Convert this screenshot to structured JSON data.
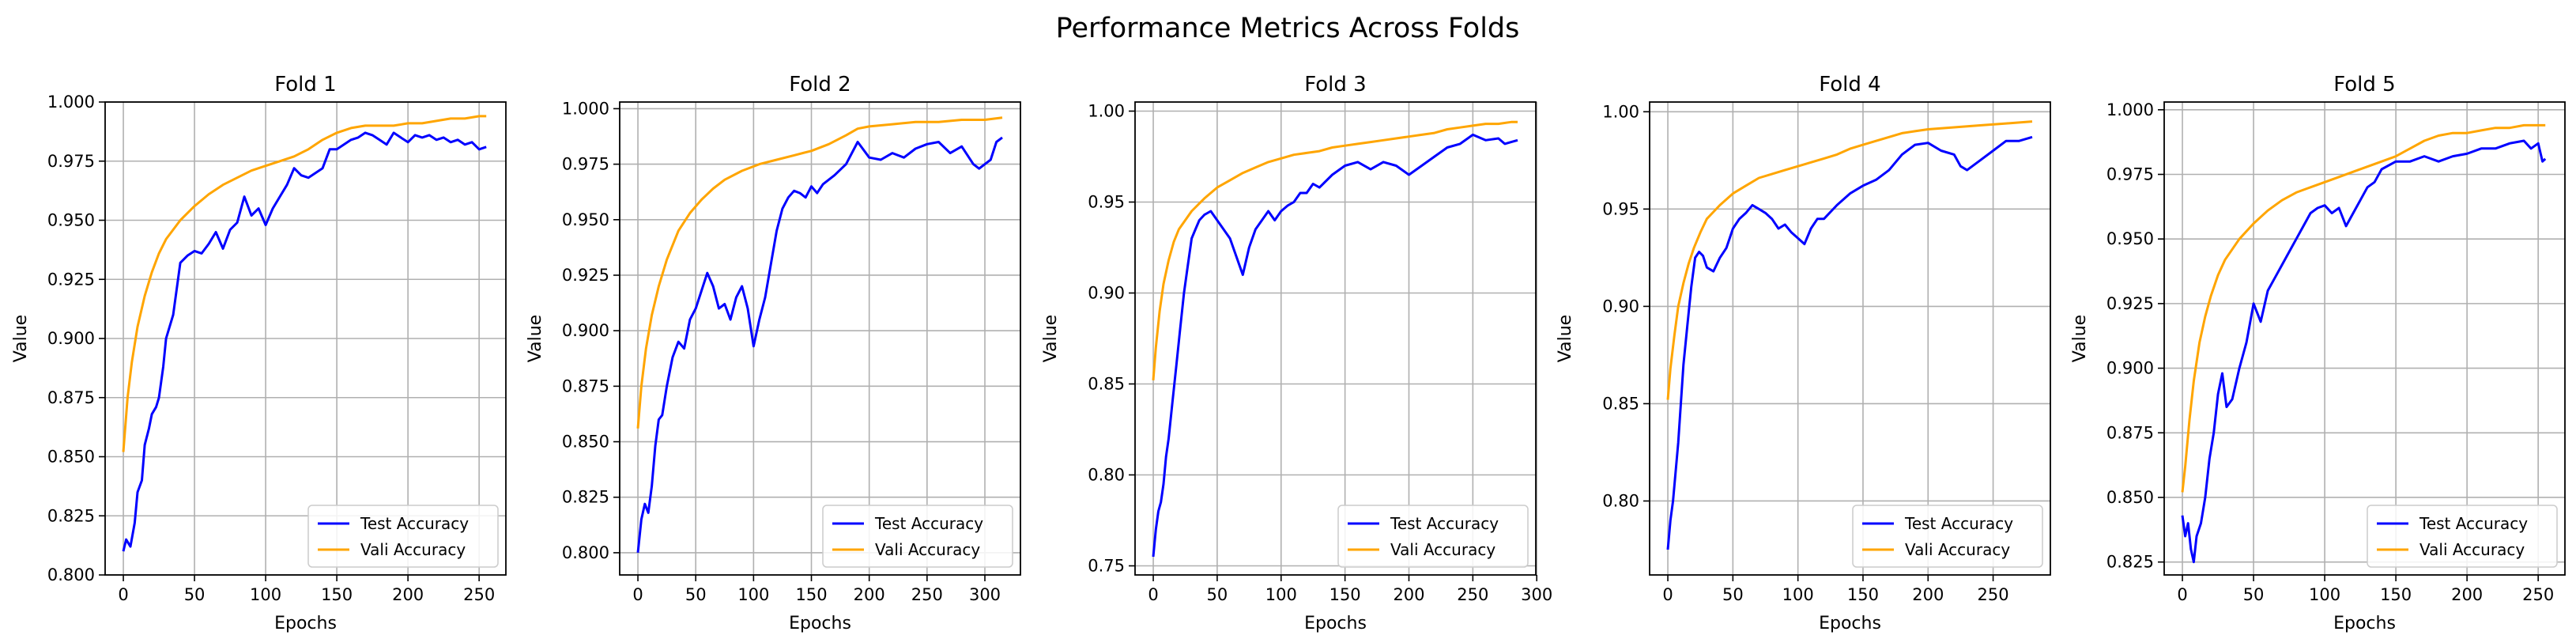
{
  "figure": {
    "title": "Performance Metrics Across Folds"
  },
  "colors": {
    "test": "#0000ff",
    "vali": "#ffa500",
    "grid": "#b0b0b0",
    "axes": "#000000"
  },
  "chart_data": [
    {
      "type": "line",
      "title": "Fold 1",
      "xlabel": "Epochs",
      "ylabel": "Value",
      "xlim": [
        -12.8,
        268.8
      ],
      "ylim": [
        0.8,
        1.0
      ],
      "xticks": [
        0,
        50,
        100,
        150,
        200,
        250
      ],
      "yticks": [
        0.8,
        0.825,
        0.85,
        0.875,
        0.9,
        0.925,
        0.95,
        0.975,
        1.0
      ],
      "ytick_labels": [
        "0.800",
        "0.825",
        "0.850",
        "0.875",
        "0.900",
        "0.925",
        "0.950",
        "0.975",
        "1.000"
      ],
      "grid": true,
      "legend": "lower-right",
      "series": [
        {
          "name": "Test Accuracy",
          "x": [
            0,
            2,
            5,
            8,
            10,
            13,
            15,
            18,
            20,
            23,
            25,
            28,
            30,
            35,
            40,
            45,
            50,
            55,
            60,
            65,
            70,
            75,
            80,
            85,
            90,
            95,
            100,
            105,
            110,
            115,
            120,
            125,
            130,
            135,
            140,
            145,
            150,
            155,
            160,
            165,
            170,
            175,
            180,
            185,
            190,
            195,
            200,
            205,
            210,
            215,
            220,
            225,
            230,
            235,
            240,
            245,
            250,
            255
          ],
          "y": [
            0.81,
            0.815,
            0.812,
            0.822,
            0.835,
            0.84,
            0.855,
            0.862,
            0.868,
            0.871,
            0.875,
            0.888,
            0.9,
            0.91,
            0.932,
            0.935,
            0.937,
            0.936,
            0.94,
            0.945,
            0.938,
            0.946,
            0.949,
            0.96,
            0.952,
            0.955,
            0.948,
            0.955,
            0.96,
            0.965,
            0.972,
            0.969,
            0.968,
            0.97,
            0.972,
            0.98,
            0.98,
            0.982,
            0.984,
            0.985,
            0.987,
            0.986,
            0.984,
            0.982,
            0.987,
            0.985,
            0.983,
            0.986,
            0.985,
            0.986,
            0.984,
            0.985,
            0.983,
            0.984,
            0.982,
            0.983,
            0.98,
            0.981
          ]
        },
        {
          "name": "Vali Accuracy",
          "x": [
            0,
            3,
            6,
            10,
            15,
            20,
            25,
            30,
            40,
            50,
            60,
            70,
            80,
            90,
            100,
            110,
            120,
            130,
            140,
            150,
            160,
            170,
            180,
            190,
            200,
            210,
            220,
            230,
            240,
            250,
            255
          ],
          "y": [
            0.852,
            0.875,
            0.89,
            0.905,
            0.918,
            0.928,
            0.936,
            0.942,
            0.95,
            0.956,
            0.961,
            0.965,
            0.968,
            0.971,
            0.973,
            0.975,
            0.977,
            0.98,
            0.984,
            0.987,
            0.989,
            0.99,
            0.99,
            0.99,
            0.991,
            0.991,
            0.992,
            0.993,
            0.993,
            0.994,
            0.994
          ]
        }
      ]
    },
    {
      "type": "line",
      "title": "Fold 2",
      "xlabel": "Epochs",
      "ylabel": "Value",
      "xlim": [
        -15.75,
        330.75
      ],
      "ylim": [
        0.79,
        1.003
      ],
      "xticks": [
        0,
        50,
        100,
        150,
        200,
        250,
        300
      ],
      "yticks": [
        0.8,
        0.825,
        0.85,
        0.875,
        0.9,
        0.925,
        0.95,
        0.975,
        1.0
      ],
      "ytick_labels": [
        "0.800",
        "0.825",
        "0.850",
        "0.875",
        "0.900",
        "0.925",
        "0.950",
        "0.975",
        "1.000"
      ],
      "grid": true,
      "legend": "lower-right",
      "series": [
        {
          "name": "Test Accuracy",
          "x": [
            0,
            3,
            6,
            9,
            12,
            15,
            18,
            21,
            25,
            30,
            35,
            40,
            45,
            50,
            55,
            60,
            65,
            70,
            75,
            80,
            85,
            90,
            95,
            100,
            105,
            110,
            115,
            120,
            125,
            130,
            135,
            140,
            145,
            150,
            155,
            160,
            170,
            180,
            190,
            200,
            210,
            220,
            230,
            240,
            250,
            260,
            270,
            280,
            290,
            295,
            300,
            305,
            310,
            315
          ],
          "y": [
            0.8,
            0.815,
            0.822,
            0.818,
            0.83,
            0.848,
            0.86,
            0.862,
            0.875,
            0.888,
            0.895,
            0.892,
            0.905,
            0.91,
            0.918,
            0.926,
            0.92,
            0.91,
            0.912,
            0.905,
            0.915,
            0.92,
            0.91,
            0.893,
            0.905,
            0.915,
            0.93,
            0.945,
            0.955,
            0.96,
            0.963,
            0.962,
            0.96,
            0.965,
            0.962,
            0.966,
            0.97,
            0.975,
            0.985,
            0.978,
            0.977,
            0.98,
            0.978,
            0.982,
            0.984,
            0.985,
            0.98,
            0.983,
            0.975,
            0.973,
            0.975,
            0.977,
            0.985,
            0.987
          ]
        },
        {
          "name": "Vali Accuracy",
          "x": [
            0,
            3,
            7,
            12,
            18,
            25,
            35,
            45,
            55,
            65,
            75,
            90,
            105,
            120,
            135,
            150,
            165,
            180,
            190,
            200,
            220,
            240,
            260,
            280,
            300,
            315
          ],
          "y": [
            0.856,
            0.875,
            0.892,
            0.907,
            0.92,
            0.932,
            0.945,
            0.953,
            0.959,
            0.964,
            0.968,
            0.972,
            0.975,
            0.977,
            0.979,
            0.981,
            0.984,
            0.988,
            0.991,
            0.992,
            0.993,
            0.994,
            0.994,
            0.995,
            0.995,
            0.996
          ]
        }
      ]
    },
    {
      "type": "line",
      "title": "Fold 3",
      "xlabel": "Epochs",
      "ylabel": "Value",
      "xlim": [
        -14.25,
        299.25
      ],
      "ylim": [
        0.745,
        1.005
      ],
      "xticks": [
        0,
        50,
        100,
        150,
        200,
        250,
        300
      ],
      "yticks": [
        0.75,
        0.8,
        0.85,
        0.9,
        0.95,
        1.0
      ],
      "ytick_labels": [
        "0.75",
        "0.80",
        "0.85",
        "0.90",
        "0.95",
        "1.00"
      ],
      "grid": true,
      "legend": "lower-right",
      "series": [
        {
          "name": "Test Accuracy",
          "x": [
            0,
            2,
            4,
            6,
            8,
            10,
            12,
            15,
            18,
            21,
            24,
            27,
            30,
            33,
            36,
            40,
            45,
            50,
            55,
            60,
            65,
            70,
            75,
            80,
            85,
            90,
            95,
            100,
            105,
            110,
            115,
            120,
            125,
            130,
            140,
            150,
            160,
            170,
            180,
            190,
            200,
            210,
            220,
            230,
            240,
            250,
            260,
            270,
            275,
            280,
            285
          ],
          "y": [
            0.755,
            0.77,
            0.78,
            0.785,
            0.795,
            0.81,
            0.82,
            0.84,
            0.86,
            0.88,
            0.9,
            0.915,
            0.93,
            0.935,
            0.94,
            0.943,
            0.945,
            0.94,
            0.935,
            0.93,
            0.92,
            0.91,
            0.925,
            0.935,
            0.94,
            0.945,
            0.94,
            0.945,
            0.948,
            0.95,
            0.955,
            0.955,
            0.96,
            0.958,
            0.965,
            0.97,
            0.972,
            0.968,
            0.972,
            0.97,
            0.965,
            0.97,
            0.975,
            0.98,
            0.982,
            0.987,
            0.984,
            0.985,
            0.982,
            0.983,
            0.984
          ]
        },
        {
          "name": "Vali Accuracy",
          "x": [
            0,
            2,
            5,
            8,
            12,
            16,
            20,
            25,
            30,
            40,
            50,
            60,
            70,
            80,
            90,
            100,
            110,
            120,
            130,
            140,
            150,
            160,
            170,
            180,
            190,
            200,
            210,
            220,
            230,
            240,
            250,
            260,
            270,
            280,
            285
          ],
          "y": [
            0.852,
            0.87,
            0.89,
            0.905,
            0.918,
            0.928,
            0.935,
            0.94,
            0.945,
            0.952,
            0.958,
            0.962,
            0.966,
            0.969,
            0.972,
            0.974,
            0.976,
            0.977,
            0.978,
            0.98,
            0.981,
            0.982,
            0.983,
            0.984,
            0.985,
            0.986,
            0.987,
            0.988,
            0.99,
            0.991,
            0.992,
            0.993,
            0.993,
            0.994,
            0.994
          ]
        }
      ]
    },
    {
      "type": "line",
      "title": "Fold 4",
      "xlabel": "Epochs",
      "ylabel": "Value",
      "xlim": [
        -14.0,
        294.0
      ],
      "ylim": [
        0.762,
        1.005
      ],
      "xticks": [
        0,
        50,
        100,
        150,
        200,
        250
      ],
      "yticks": [
        0.8,
        0.85,
        0.9,
        0.95,
        1.0
      ],
      "ytick_labels": [
        "0.80",
        "0.85",
        "0.90",
        "0.95",
        "1.00"
      ],
      "grid": true,
      "legend": "lower-right",
      "series": [
        {
          "name": "Test Accuracy",
          "x": [
            0,
            2,
            4,
            6,
            8,
            10,
            12,
            15,
            18,
            21,
            24,
            27,
            30,
            35,
            40,
            45,
            50,
            55,
            60,
            65,
            70,
            75,
            80,
            85,
            90,
            95,
            100,
            105,
            110,
            115,
            120,
            130,
            140,
            150,
            160,
            170,
            180,
            190,
            200,
            210,
            220,
            225,
            230,
            240,
            250,
            260,
            270,
            280
          ],
          "y": [
            0.775,
            0.79,
            0.8,
            0.815,
            0.83,
            0.85,
            0.87,
            0.89,
            0.91,
            0.925,
            0.928,
            0.926,
            0.92,
            0.918,
            0.925,
            0.93,
            0.94,
            0.945,
            0.948,
            0.952,
            0.95,
            0.948,
            0.945,
            0.94,
            0.942,
            0.938,
            0.935,
            0.932,
            0.94,
            0.945,
            0.945,
            0.952,
            0.958,
            0.962,
            0.965,
            0.97,
            0.978,
            0.983,
            0.984,
            0.98,
            0.978,
            0.972,
            0.97,
            0.975,
            0.98,
            0.985,
            0.985,
            0.987
          ]
        },
        {
          "name": "Vali Accuracy",
          "x": [
            0,
            2,
            5,
            8,
            12,
            16,
            20,
            25,
            30,
            40,
            50,
            60,
            70,
            80,
            90,
            100,
            110,
            120,
            130,
            140,
            150,
            160,
            170,
            180,
            190,
            200,
            220,
            240,
            260,
            280
          ],
          "y": [
            0.852,
            0.868,
            0.885,
            0.9,
            0.912,
            0.922,
            0.93,
            0.938,
            0.945,
            0.952,
            0.958,
            0.962,
            0.966,
            0.968,
            0.97,
            0.972,
            0.974,
            0.976,
            0.978,
            0.981,
            0.983,
            0.985,
            0.987,
            0.989,
            0.99,
            0.991,
            0.992,
            0.993,
            0.994,
            0.995
          ]
        }
      ]
    },
    {
      "type": "line",
      "title": "Fold 5",
      "xlabel": "Epochs",
      "ylabel": "Value",
      "xlim": [
        -12.8,
        268.8
      ],
      "ylim": [
        0.82,
        1.003
      ],
      "xticks": [
        0,
        50,
        100,
        150,
        200,
        250
      ],
      "yticks": [
        0.825,
        0.85,
        0.875,
        0.9,
        0.925,
        0.95,
        0.975,
        1.0
      ],
      "ytick_labels": [
        "0.825",
        "0.850",
        "0.875",
        "0.900",
        "0.925",
        "0.950",
        "0.975",
        "1.000"
      ],
      "grid": true,
      "legend": "lower-right",
      "series": [
        {
          "name": "Test Accuracy",
          "x": [
            0,
            2,
            4,
            6,
            8,
            10,
            13,
            16,
            19,
            22,
            25,
            28,
            31,
            35,
            40,
            45,
            50,
            55,
            60,
            65,
            70,
            75,
            80,
            85,
            90,
            95,
            100,
            105,
            110,
            115,
            120,
            125,
            130,
            135,
            140,
            150,
            160,
            170,
            180,
            190,
            200,
            210,
            220,
            230,
            240,
            245,
            250,
            253,
            255
          ],
          "y": [
            0.843,
            0.835,
            0.84,
            0.83,
            0.825,
            0.835,
            0.84,
            0.85,
            0.865,
            0.875,
            0.89,
            0.898,
            0.885,
            0.888,
            0.9,
            0.91,
            0.925,
            0.918,
            0.93,
            0.935,
            0.94,
            0.945,
            0.95,
            0.955,
            0.96,
            0.962,
            0.963,
            0.96,
            0.962,
            0.955,
            0.96,
            0.965,
            0.97,
            0.972,
            0.977,
            0.98,
            0.98,
            0.982,
            0.98,
            0.982,
            0.983,
            0.985,
            0.985,
            0.987,
            0.988,
            0.985,
            0.987,
            0.98,
            0.981
          ]
        },
        {
          "name": "Vali Accuracy",
          "x": [
            0,
            2,
            5,
            8,
            12,
            16,
            20,
            25,
            30,
            40,
            50,
            60,
            70,
            80,
            90,
            100,
            110,
            120,
            130,
            140,
            150,
            160,
            170,
            180,
            190,
            200,
            210,
            220,
            230,
            240,
            250,
            255
          ],
          "y": [
            0.852,
            0.862,
            0.88,
            0.895,
            0.91,
            0.92,
            0.928,
            0.936,
            0.942,
            0.95,
            0.956,
            0.961,
            0.965,
            0.968,
            0.97,
            0.972,
            0.974,
            0.976,
            0.978,
            0.98,
            0.982,
            0.985,
            0.988,
            0.99,
            0.991,
            0.991,
            0.992,
            0.993,
            0.993,
            0.994,
            0.994,
            0.994
          ]
        }
      ]
    }
  ]
}
